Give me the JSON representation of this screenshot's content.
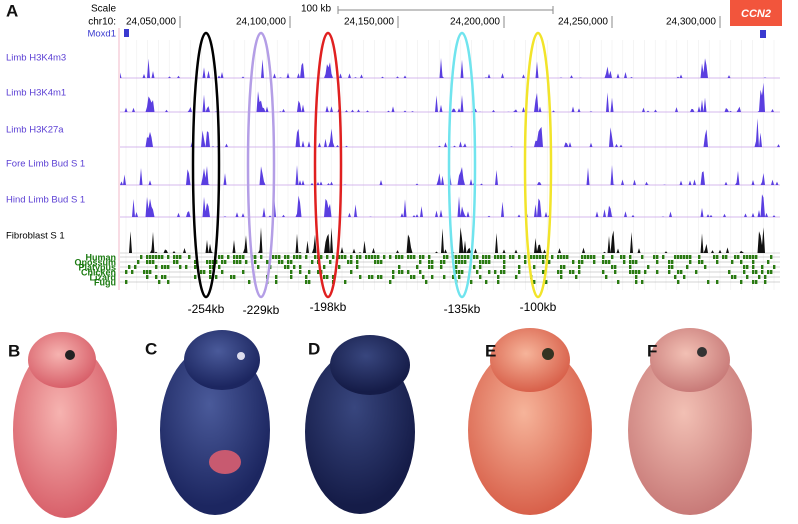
{
  "panel_a": {
    "label": "A",
    "scale_label": "Scale",
    "scale_bar": "100 kb",
    "chrom": "chr10:",
    "coordinates": [
      "24,050,000",
      "24,100,000",
      "24,150,000",
      "24,200,000",
      "24,250,000",
      "24,300,000"
    ],
    "genes": [
      "Moxd1",
      "CCN2"
    ],
    "tracks": [
      "Limb H3K4m3",
      "Limb H3K4m1",
      "Limb H3K27a",
      "Fore Limb Bud S 1",
      "Hind Limb Bud S 1",
      "Fibroblast S 1"
    ],
    "species": [
      "Human",
      "Opossum",
      "Platypus",
      "Chicken",
      "Lizard",
      "Fugu"
    ],
    "regions": [
      "-254kb",
      "-229kb",
      "-198kb",
      "-135kb",
      "-100kb"
    ]
  },
  "panels": [
    "B",
    "C",
    "D",
    "E",
    "F"
  ]
}
